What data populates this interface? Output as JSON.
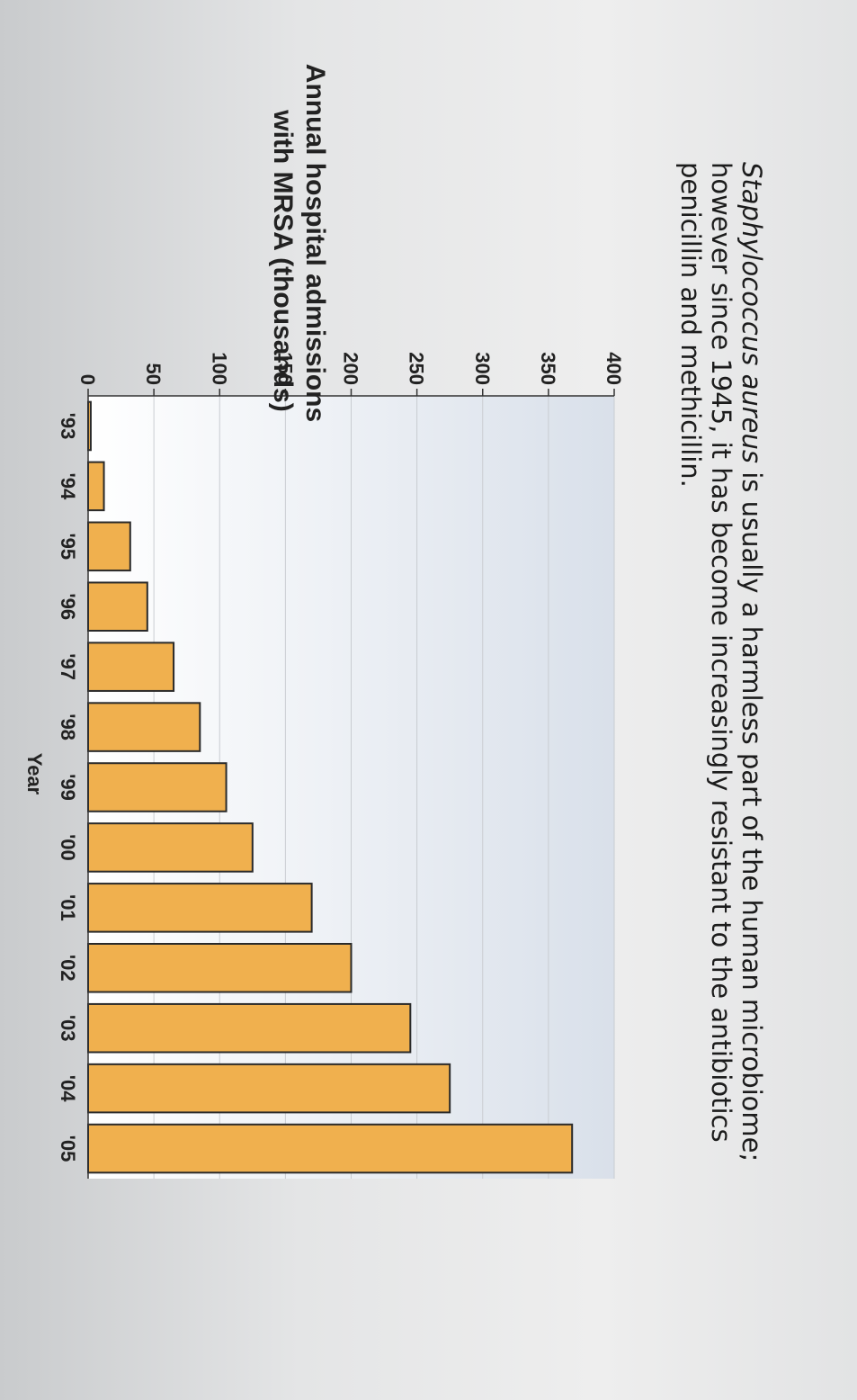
{
  "caption": {
    "species": "Staphylococcus aureus",
    "text": " is usually a harmless part of the human microbiome; however since 1945, it has become increasingly resistant to the antibiotics penicillin and methicillin."
  },
  "chart_data": {
    "type": "bar",
    "ylabel_line1": "Annual hospital admissions",
    "ylabel_line2": "with MRSA (thousands)",
    "xlabel": "Year",
    "categories": [
      "'93",
      "'94",
      "'95",
      "'96",
      "'97",
      "'98",
      "'99",
      "'00",
      "'01",
      "'02",
      "'03",
      "'04",
      "'05"
    ],
    "values": [
      2,
      12,
      32,
      45,
      65,
      85,
      105,
      125,
      170,
      200,
      245,
      275,
      368
    ],
    "ylim": [
      0,
      400
    ],
    "yticks": [
      "0",
      "50",
      "100",
      "150",
      "200",
      "250",
      "300",
      "350",
      "400"
    ],
    "ytick_values": [
      0,
      50,
      100,
      150,
      200,
      250,
      300,
      350,
      400
    ],
    "colors": {
      "bar_fill": "#f0b04e",
      "bar_stroke": "#2a2a2a",
      "plot_bg_bottom": "#ffffff",
      "plot_bg_top": "#d9e0ea"
    }
  }
}
